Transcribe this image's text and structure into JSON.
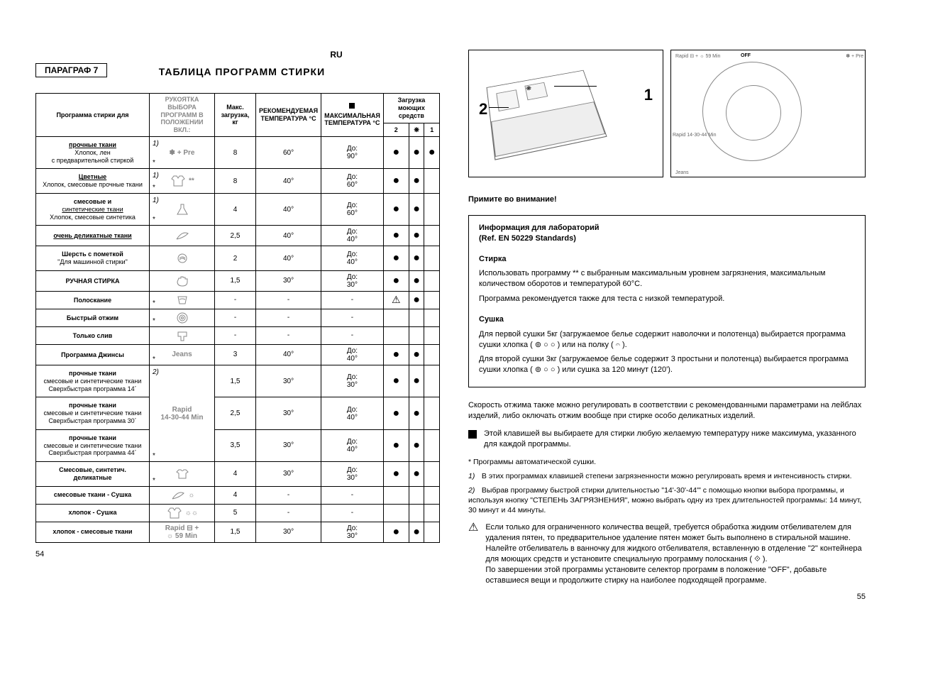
{
  "ru_badge": "RU",
  "section": "ПАРАГРАФ 7",
  "title": "ТАБЛИЦА ПРОГРАММ СТИРКИ",
  "headers": {
    "prog": "Программа стирки для",
    "selector": "РУКОЯТКА ВЫБОРА ПРОГРАММ В ПОЛОЖЕНИИ ВКЛ.:",
    "load": "Макс. загрузка, кг",
    "rec_temp": "РЕКОМЕНДУЕМАЯ ТЕМПЕРАТУРА °C",
    "max_temp": "МАКСИМАЛЬНАЯ ТЕМПЕРАТУРА °C",
    "detergent": "Загрузка моющих средств",
    "det_col1": "2",
    "det_col2": "❋",
    "det_col3": "1"
  },
  "rows": [
    {
      "name_lines": [
        "прочные ткани",
        "Хлопок, лен",
        "с предварительной стиркой"
      ],
      "underline_idx": 0,
      "selector": "✽ + Pre",
      "num": "1)",
      "star": "*",
      "load": "8",
      "temp": "60°",
      "maxtemp": "До:\n90°",
      "d1": "●",
      "d2": "●",
      "d3": "●"
    },
    {
      "name_lines": [
        "Цветные",
        "Хлопок, смесовые прочные ткани"
      ],
      "underline_idx": 0,
      "selector": "**",
      "num": "1)",
      "star": "*",
      "icon": "shirt",
      "load": "8",
      "temp": "40°",
      "maxtemp": "До:\n60°",
      "d1": "●",
      "d2": "●",
      "d3": ""
    },
    {
      "name_lines": [
        "смесовые и",
        "синтетические ткани",
        "Хлопок, смесовые синтетика"
      ],
      "underline_idx": 1,
      "selector": "",
      "num": "1)",
      "star": "*",
      "icon": "flask",
      "load": "4",
      "temp": "40°",
      "maxtemp": "До:\n60°",
      "d1": "●",
      "d2": "●",
      "d3": ""
    },
    {
      "name_lines": [
        "очень деликатные ткани"
      ],
      "underline_idx": 0,
      "selector": "",
      "icon": "feather",
      "load": "2,5",
      "temp": "40°",
      "maxtemp": "До:\n40°",
      "d1": "●",
      "d2": "●",
      "d3": ""
    },
    {
      "name_lines": [
        "Шерсть с пометкой",
        "\"Для машинной стирки\""
      ],
      "underline_idx": -1,
      "selector": "",
      "icon": "wool",
      "load": "2",
      "temp": "40°",
      "maxtemp": "До:\n40°",
      "d1": "●",
      "d2": "●",
      "d3": ""
    },
    {
      "name_lines": [
        "РУЧНАЯ СТИРКА"
      ],
      "underline_idx": -1,
      "selector": "",
      "icon": "hand",
      "load": "1,5",
      "temp": "30°",
      "maxtemp": "До:\n30°",
      "d1": "●",
      "d2": "●",
      "d3": ""
    },
    {
      "name_lines": [
        "Полоскание"
      ],
      "underline_idx": -1,
      "selector": "",
      "star": "*",
      "icon": "rinse",
      "load": "-",
      "temp": "-",
      "maxtemp": "-",
      "d1": "⚠",
      "d2": "●",
      "d3": ""
    },
    {
      "name_lines": [
        "Быстрый отжим"
      ],
      "underline_idx": -1,
      "selector": "",
      "star": "*",
      "icon": "spin",
      "load": "-",
      "temp": "-",
      "maxtemp": "-",
      "d1": "",
      "d2": "",
      "d3": ""
    },
    {
      "name_lines": [
        "Только слив"
      ],
      "underline_idx": -1,
      "selector": "",
      "icon": "drain",
      "load": "-",
      "temp": "-",
      "maxtemp": "-",
      "d1": "",
      "d2": "",
      "d3": ""
    },
    {
      "name_lines": [
        "Программа Джинсы"
      ],
      "underline_idx": -1,
      "selector": "Jeans",
      "star": "*",
      "load": "3",
      "temp": "40°",
      "maxtemp": "До:\n40°",
      "d1": "●",
      "d2": "●",
      "d3": ""
    },
    {
      "name_lines": [
        "прочные ткани",
        "смесовые и синтетические ткани",
        "Сверхбыстрая программа 14´"
      ],
      "underline_idx": -1,
      "selector": "",
      "num": "2)",
      "load": "1,5",
      "temp": "30°",
      "maxtemp": "До:\n30°",
      "d1": "●",
      "d2": "●",
      "d3": "",
      "merge_start": true,
      "merge_label": "Rapid\n14-30-44 Min"
    },
    {
      "name_lines": [
        "прочные ткани",
        "смесовые и синтетические ткани",
        "Сверхбыстрая программа 30´"
      ],
      "underline_idx": -1,
      "selector": "Rapid\n14-30-44 Min",
      "load": "2,5",
      "temp": "30°",
      "maxtemp": "До:\n40°",
      "d1": "●",
      "d2": "●",
      "d3": "",
      "merge_mid": true
    },
    {
      "name_lines": [
        "прочные ткани",
        "смесовые и синтетические ткани",
        "Сверхбыстрая программа 44´"
      ],
      "underline_idx": -1,
      "selector": "",
      "star": "*",
      "load": "3,5",
      "temp": "30°",
      "maxtemp": "До:\n40°",
      "d1": "●",
      "d2": "●",
      "d3": "",
      "merge_end": true
    },
    {
      "name_lines": [
        "Смесовые, синтетич. деликатные"
      ],
      "underline_idx": -1,
      "selector": "",
      "star": "*",
      "icon": "tshirt",
      "load": "4",
      "temp": "30°",
      "maxtemp": "До:\n30°",
      "d1": "●",
      "d2": "●",
      "d3": ""
    },
    {
      "name_lines": [
        "смесовые ткани - Сушка"
      ],
      "underline_idx": -1,
      "selector": "☼",
      "icon": "feather",
      "load": "4",
      "temp": "-",
      "maxtemp": "-",
      "d1": "",
      "d2": "",
      "d3": ""
    },
    {
      "name_lines": [
        "хлопок - Сушка"
      ],
      "underline_idx": -1,
      "selector": "☼☼",
      "icon": "shirt",
      "load": "5",
      "temp": "-",
      "maxtemp": "-",
      "d1": "",
      "d2": "",
      "d3": ""
    },
    {
      "name_lines": [
        "хлопок - смесовые ткани"
      ],
      "underline_idx": -1,
      "selector": "Rapid ⊟ +\n☼ 59 Min",
      "load": "1,5",
      "temp": "30°",
      "maxtemp": "До:\n30°",
      "d1": "●",
      "d2": "●",
      "d3": ""
    }
  ],
  "page_left": "54",
  "page_right": "55",
  "dial": {
    "off": "OFF",
    "rapid59": "Rapid ⊟ + ☼ 59 Min",
    "pre": "✽ + Pre",
    "jeans": "Jeans",
    "rapid1444": "Rapid\n14-30-44 Min"
  },
  "notes": {
    "attention": "Примите во внимание!",
    "box_title": "Информация для лабораторий",
    "box_ref": "(Ref. EN 50229 Standards)",
    "wash_h": "Стирка",
    "wash_p1": "Использовать программу ** с выбранным максимальным уровнем загрязнения, максимальным количеством оборотов и температурой 60°С.",
    "wash_p2": "Программа рекомендуется также для теста с низкой температурой.",
    "dry_h": "Сушка",
    "dry_p1": "Для первой сушки 5кг (загружаемое белье содержит наволочки и полотенца) выбирается программа сушки хлопка ( ⊚ ○ ○ ) или на полку ( 𝄐 ).",
    "dry_p2": "Для второй сушки 3кг (загружаемое белье содержит 3 простыни и полотенца) выбирается программа сушки хлопка ( ⊚ ○ ○ ) или сушка за 120 минут (120').",
    "p_spin": "Скорость отжима также можно регулировать в соответствии с рекомендованными параметрами на лейблах изделий, либо оключать отжим вообще при стирке особо деликатных изделий.",
    "p_bullet": "Этой клавишей вы выбираете для стирки любую желаемую температуру ниже максимума, указанного для каждой программы.",
    "fn_star": "* Программы автоматической сушки.",
    "fn_1": "1)",
    "fn_1_txt": "В этих программах клавишей степени загрязненности можно регулировать время и интенсивность стирки.",
    "fn_2": "2)",
    "fn_2_txt": "Выбрав программу быстрой стирки длительностью \"14'-30'-44'\" с помощью кнопки выбора программы, и используя кнопку \"СТЕПЕНЬ ЗАГРЯЗНЕНИЯ\", можно выбрать одну из трех длительностей программы: 14 минут, 30 минут и 44 минуты.",
    "warn_p1": "Если только для ограниченного количества вещей, требуется обработка жидким отбеливателем для удаления пятен, то предварительное удаление пятен может быть выполнено в стиральной машине.",
    "warn_p2": "Налейте отбеливатель в ванночку для жидкого отбеливателя, вставленную в отделение \"2\" контейнера для моющих средств и установите специальную программу полоскания ( ⟐ ).",
    "warn_p3": "По завершении этой программы установите селектор программ в положение \"OFF\", добавьте оставшиеся вещи и продолжите стирку на наиболее подходящей программе."
  }
}
